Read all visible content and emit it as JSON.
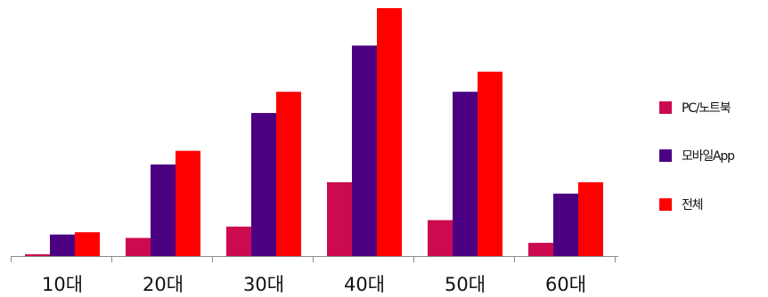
{
  "chart_data": {
    "type": "bar",
    "title": "",
    "xlabel": "",
    "ylabel": "",
    "categories": [
      "10대",
      "20대",
      "30대",
      "40대",
      "50대",
      "60대"
    ],
    "series": [
      {
        "name": "PC/노트북",
        "color": "#cc0a4f",
        "values": [
          0.5,
          4.8,
          7.8,
          19.5,
          9.5,
          3.5
        ]
      },
      {
        "name": "모바일App",
        "color": "#4b0082",
        "values": [
          5.7,
          24.2,
          37.8,
          55.6,
          43.4,
          16.5
        ]
      },
      {
        "name": "전체",
        "color": "#ff0000",
        "values": [
          6.3,
          27.8,
          43.4,
          65.5,
          48.7,
          19.5
        ]
      }
    ],
    "ylim": [
      0,
      66
    ],
    "grid": false,
    "legend_position": "right"
  }
}
